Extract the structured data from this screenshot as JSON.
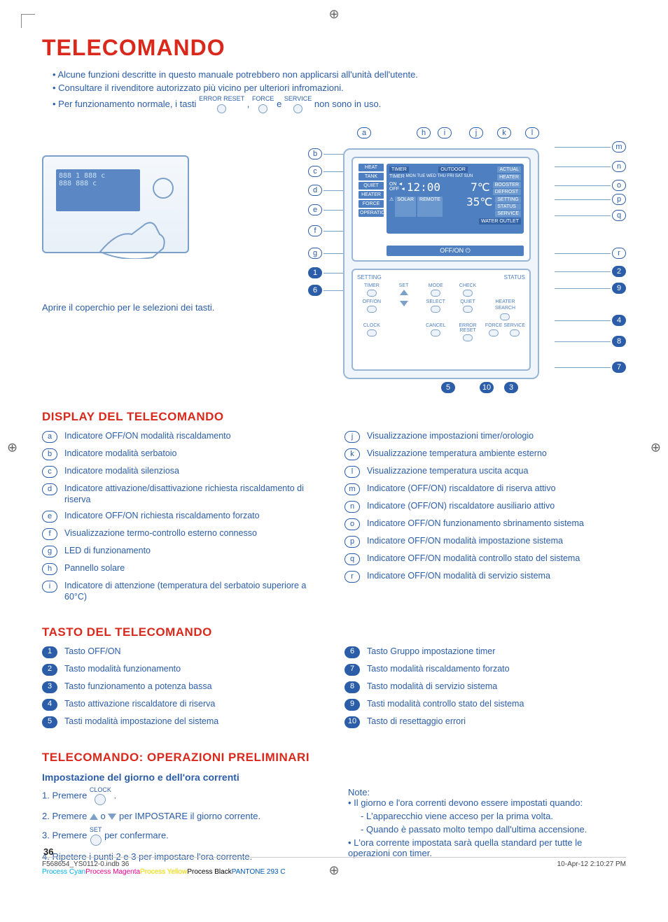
{
  "colors": {
    "accent_red": "#d9291c",
    "accent_blue": "#2b5da8",
    "line_blue": "#7da0c8",
    "lcd_blue": "#4d7fc1"
  },
  "registration_glyph": "⊕",
  "title": "TELECOMANDO",
  "intro_bullets": [
    "Alcune funzioni descritte in questo manuale potrebbero non applicarsi all'unità dell'utente.",
    "Consultare il rivenditore autorizzato più vicino per ulteriori infromazioni."
  ],
  "intro_line3_pre": "Per funzionamento normale, i tasti ",
  "intro_line3_labels": [
    "ERROR RESET",
    "FORCE",
    "SERVICE"
  ],
  "intro_line3_join1": ", ",
  "intro_line3_join2": " e ",
  "intro_line3_post": "  non sono in uso.",
  "caption_left": "Aprire il coperchio per le selezioni dei tasti.",
  "lcd": {
    "top_chips": [
      "TIMER",
      "OUTDOOR",
      "ACTUAL"
    ],
    "days": "MON TUE WED THU FRI SAT SUN",
    "timer_label": "TIMER",
    "on_label": "ON ◄",
    "off_label": "OFF ◄",
    "clock": "12:00",
    "temp_out": "7℃",
    "temp_water": "35℃",
    "solar": "SOLAR",
    "remote": "REMOTE",
    "water_outlet": "WATER OUTLET",
    "right_chips": [
      "HEATER",
      "BOOSTER",
      "DEFROST",
      "SETTING",
      "STATUS",
      "SERVICE"
    ],
    "offon": "OFF/ON ⏻",
    "left_tags": [
      "HEAT",
      "TANK",
      "QUIET",
      "HEATER",
      "FORCE",
      "OPERATION"
    ]
  },
  "lower_panel": {
    "hdr_left": "SETTING",
    "hdr_right": "STATUS",
    "row1": [
      "TIMER",
      "SET",
      "MODE",
      "CHECK",
      ""
    ],
    "row2": [
      "OFF/ON",
      "",
      "SELECT",
      "QUIET",
      "HEATER",
      "SEARCH"
    ],
    "row3": [
      "CLOCK",
      "",
      "CANCEL",
      "ERROR RESET",
      "FORCE",
      "SERVICE"
    ]
  },
  "callouts_letters_left": [
    "a",
    "b",
    "c",
    "d",
    "e",
    "f",
    "g"
  ],
  "callouts_letters_top": [
    "h",
    "i",
    "j",
    "k",
    "l"
  ],
  "callouts_letters_right": [
    "m",
    "n",
    "o",
    "p",
    "q",
    "r"
  ],
  "callouts_nums_left": [
    "1",
    "6"
  ],
  "callouts_nums_right": [
    "2",
    "9",
    "4",
    "8",
    "7"
  ],
  "callouts_nums_bottom": [
    "5",
    "10",
    "3"
  ],
  "section_display": "DISPLAY DEL TELECOMANDO",
  "display_left": [
    {
      "k": "a",
      "t": "Indicatore OFF/ON modalità riscaldamento"
    },
    {
      "k": "b",
      "t": "Indicatore modalità serbatoio"
    },
    {
      "k": "c",
      "t": "Indicatore modalità silenziosa"
    },
    {
      "k": "d",
      "t": "Indicatore attivazione/disattivazione richiesta riscaldamento di riserva"
    },
    {
      "k": "e",
      "t": "Indicatore OFF/ON richiesta riscaldamento forzato"
    },
    {
      "k": "f",
      "t": "Visualizzazione termo-controllo esterno connesso"
    },
    {
      "k": "g",
      "t": "LED di funzionamento"
    },
    {
      "k": "h",
      "t": "Pannello solare"
    },
    {
      "k": "i",
      "t": "Indicatore di attenzione (temperatura del serbatoio superiore a 60°C)"
    }
  ],
  "display_right": [
    {
      "k": "j",
      "t": "Visualizzazione impostazioni timer/orologio"
    },
    {
      "k": "k",
      "t": "Visualizzazione temperatura ambiente esterno"
    },
    {
      "k": "l",
      "t": "Visualizzazione temperatura uscita acqua"
    },
    {
      "k": "m",
      "t": "Indicatore (OFF/ON) riscaldatore di riserva attivo"
    },
    {
      "k": "n",
      "t": "Indicatore (OFF/ON) riscaldatore ausiliario attivo"
    },
    {
      "k": "o",
      "t": "Indicatore OFF/ON funzionamento sbrinamento sistema"
    },
    {
      "k": "p",
      "t": "Indicatore OFF/ON modalità impostazione sistema"
    },
    {
      "k": "q",
      "t": "Indicatore OFF/ON modalità controllo stato del sistema"
    },
    {
      "k": "r",
      "t": "Indicatore OFF/ON modalità di servizio sistema"
    }
  ],
  "section_tasto": "TASTO DEL TELECOMANDO",
  "tasto_left": [
    {
      "k": "1",
      "t": "Tasto OFF/ON"
    },
    {
      "k": "2",
      "t": "Tasto modalità funzionamento"
    },
    {
      "k": "3",
      "t": "Tasto funzionamento a potenza bassa"
    },
    {
      "k": "4",
      "t": "Tasto attivazione riscaldatore di riserva"
    },
    {
      "k": "5",
      "t": "Tasti modalità impostazione del sistema"
    }
  ],
  "tasto_right": [
    {
      "k": "6",
      "t": "Tasto Gruppo impostazione timer"
    },
    {
      "k": "7",
      "t": "Tasto modalità riscaldamento forzato"
    },
    {
      "k": "8",
      "t": "Tasto modalità di servizio sistema"
    },
    {
      "k": "9",
      "t": "Tasti modalità controllo stato del sistema"
    },
    {
      "k": "10",
      "t": "Tasto di resettaggio errori"
    }
  ],
  "section_prelim": "TELECOMANDO: OPERAZIONI PRELIMINARI",
  "prelim_sub": "Impostazione del giorno e dell'ora correnti",
  "prelim_steps": {
    "s1_pre": "1. Premere ",
    "s1_label": "CLOCK",
    "s1_post": " .",
    "s2_pre": "2. Premere ",
    "s2_mid": " o ",
    "s2_post": " per IMPOSTARE il giorno corrente.",
    "s3_pre": "3. Premere ",
    "s3_label": "SET",
    "s3_post": " per confermare.",
    "s4": "4. Ripetere i punti 2 e 3 per impostare l'ora corrente."
  },
  "notes_title": "Note:",
  "notes": [
    "Il giorno e l'ora correnti devono essere impostati quando:",
    "L'apparecchio viene acceso per la prima volta.",
    "Quando è passato molto tempo dall'ultima accensione.",
    "L'ora corrente impostata sarà quella standard per tutte le operazioni con timer."
  ],
  "page_number": "36",
  "footer_left": "F568654_YS0112-0.indb   36",
  "footer_right": "10-Apr-12   2:10:27 PM",
  "color_bar": [
    "Process Cyan",
    "Process Magenta",
    "Process Yellow",
    "Process Black",
    "PANTONE 293 C"
  ]
}
